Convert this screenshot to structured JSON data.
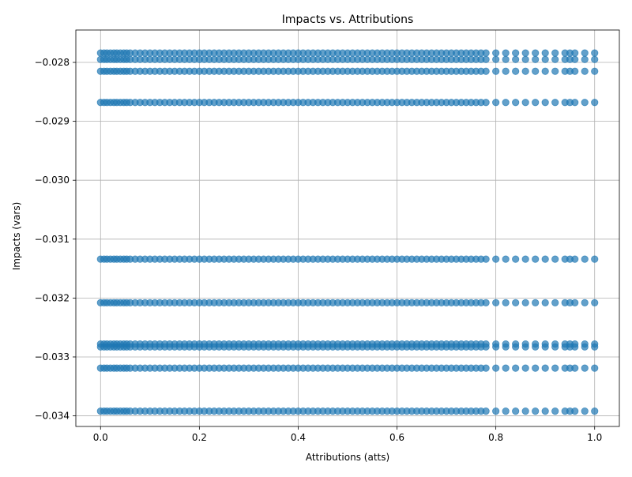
{
  "chart_data": {
    "type": "scatter",
    "title": "Impacts vs. Attributions",
    "xlabel": "Attributions (atts)",
    "ylabel": "Impacts (vars)",
    "xlim": [
      -0.05,
      1.05
    ],
    "ylim": [
      -0.03418,
      -0.02745
    ],
    "grid": true,
    "xticks": [
      0.0,
      0.2,
      0.4,
      0.6,
      0.8,
      1.0
    ],
    "xtick_labels": [
      "0.0",
      "0.2",
      "0.4",
      "0.6",
      "0.8",
      "1.0"
    ],
    "yticks": [
      -0.028,
      -0.029,
      -0.03,
      -0.031,
      -0.032,
      -0.033,
      -0.034
    ],
    "ytick_labels": [
      "−0.028",
      "−0.029",
      "−0.030",
      "−0.031",
      "−0.032",
      "−0.033",
      "−0.034"
    ],
    "marker_color": "#1f77b4",
    "marker_alpha": 0.7,
    "impact_levels": [
      -0.02784,
      -0.02795,
      -0.02815,
      -0.02868,
      -0.03134,
      -0.03208,
      -0.03278,
      -0.03283,
      -0.03319,
      -0.03392
    ],
    "attributions": [
      0.0,
      0.007,
      0.013,
      0.02,
      0.027,
      0.033,
      0.04,
      0.047,
      0.053,
      0.06,
      0.07,
      0.08,
      0.09,
      0.1,
      0.11,
      0.12,
      0.13,
      0.14,
      0.15,
      0.16,
      0.17,
      0.18,
      0.19,
      0.2,
      0.21,
      0.22,
      0.23,
      0.24,
      0.25,
      0.26,
      0.27,
      0.28,
      0.29,
      0.3,
      0.31,
      0.32,
      0.33,
      0.34,
      0.35,
      0.36,
      0.37,
      0.38,
      0.39,
      0.4,
      0.41,
      0.42,
      0.43,
      0.44,
      0.45,
      0.46,
      0.47,
      0.48,
      0.49,
      0.5,
      0.51,
      0.52,
      0.53,
      0.54,
      0.55,
      0.56,
      0.57,
      0.58,
      0.59,
      0.6,
      0.61,
      0.62,
      0.63,
      0.64,
      0.65,
      0.66,
      0.67,
      0.68,
      0.69,
      0.7,
      0.71,
      0.72,
      0.73,
      0.74,
      0.75,
      0.76,
      0.77,
      0.78,
      0.8,
      0.82,
      0.84,
      0.86,
      0.88,
      0.9,
      0.92,
      0.94,
      0.95,
      0.96,
      0.98,
      1.0
    ]
  }
}
